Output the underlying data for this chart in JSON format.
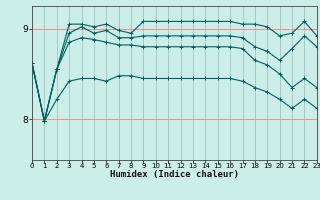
{
  "title": "",
  "xlabel": "Humidex (Indice chaleur)",
  "ylabel": "",
  "bg_color": "#cceee8",
  "line_color": "#006060",
  "grid_color_h": "#ff8888",
  "grid_color_v": "#99bbbb",
  "xlim": [
    0,
    23
  ],
  "ylim": [
    7.55,
    9.25
  ],
  "yticks": [
    8,
    9
  ],
  "xticks": [
    0,
    1,
    2,
    3,
    4,
    5,
    6,
    7,
    8,
    9,
    10,
    11,
    12,
    13,
    14,
    15,
    16,
    17,
    18,
    19,
    20,
    21,
    22,
    23
  ],
  "series": [
    [
      8.62,
      7.98,
      8.55,
      9.05,
      9.05,
      9.02,
      9.05,
      8.98,
      8.95,
      9.08,
      9.08,
      9.08,
      9.08,
      9.08,
      9.08,
      9.08,
      9.08,
      9.05,
      9.05,
      9.02,
      8.92,
      8.95,
      9.08,
      8.92
    ],
    [
      8.62,
      7.98,
      8.55,
      8.95,
      9.02,
      8.95,
      8.98,
      8.9,
      8.9,
      8.92,
      8.92,
      8.92,
      8.92,
      8.92,
      8.92,
      8.92,
      8.92,
      8.9,
      8.8,
      8.75,
      8.65,
      8.78,
      8.92,
      8.8
    ],
    [
      8.62,
      7.98,
      8.55,
      8.85,
      8.9,
      8.88,
      8.85,
      8.82,
      8.82,
      8.8,
      8.8,
      8.8,
      8.8,
      8.8,
      8.8,
      8.8,
      8.8,
      8.78,
      8.65,
      8.6,
      8.5,
      8.35,
      8.45,
      8.35
    ],
    [
      8.62,
      7.98,
      8.22,
      8.42,
      8.45,
      8.45,
      8.42,
      8.48,
      8.48,
      8.45,
      8.45,
      8.45,
      8.45,
      8.45,
      8.45,
      8.45,
      8.45,
      8.42,
      8.35,
      8.3,
      8.22,
      8.12,
      8.22,
      8.12
    ]
  ],
  "marker": "+",
  "markersize": 3,
  "linewidth": 0.8,
  "markeredgewidth": 0.7
}
